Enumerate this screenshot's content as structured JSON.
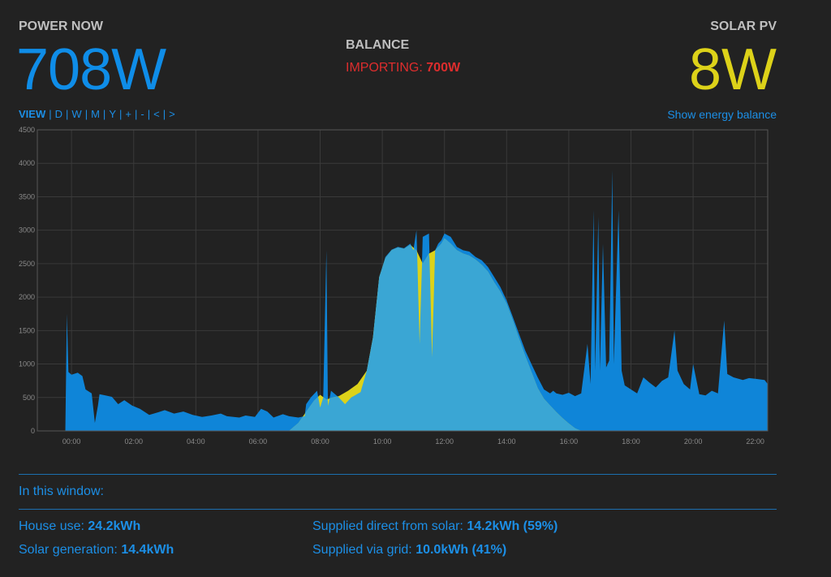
{
  "power_now": {
    "label": "POWER NOW",
    "value": "708W",
    "color": "#0f8de8"
  },
  "balance": {
    "label": "BALANCE",
    "status_prefix": "IMPORTING: ",
    "status_value": "700W",
    "color": "#dd2d2d"
  },
  "solar_pv": {
    "label": "SOLAR PV",
    "value": "8W",
    "color": "#ddd219"
  },
  "view_bar": {
    "items": [
      "VIEW",
      "D",
      "W",
      "M",
      "Y",
      "+",
      "-",
      "<",
      ">"
    ],
    "separator": "|"
  },
  "show_energy_balance": "Show energy balance",
  "summary": {
    "window_label": "In this window:",
    "house_use_label": "House use: ",
    "house_use_value": "24.2kWh",
    "solar_gen_label": "Solar generation: ",
    "solar_gen_value": "14.4kWh",
    "direct_solar_label": "Supplied direct from solar: ",
    "direct_solar_value": "14.2kWh (59%)",
    "via_grid_label": "Supplied via grid: ",
    "via_grid_value": "10.0kWh (41%)"
  },
  "chart_data": {
    "type": "area",
    "y_ticks": [
      0,
      500,
      1000,
      1500,
      2000,
      2500,
      3000,
      3500,
      4000,
      4500
    ],
    "x_ticks": [
      "00:00",
      "02:00",
      "04:00",
      "06:00",
      "08:00",
      "10:00",
      "12:00",
      "14:00",
      "16:00",
      "18:00",
      "20:00",
      "22:00"
    ],
    "ylim": [
      0,
      4500
    ],
    "xlim_hours": [
      -1.1,
      22.4
    ],
    "grid": true,
    "colors": {
      "use": "#0f85d8",
      "solar": "#ddd219",
      "direct": "#3aa6d4"
    },
    "series": [
      {
        "name": "use",
        "points": [
          [
            -0.2,
            0
          ],
          [
            -0.15,
            1750
          ],
          [
            -0.1,
            880
          ],
          [
            0,
            840
          ],
          [
            0.2,
            870
          ],
          [
            0.35,
            820
          ],
          [
            0.45,
            620
          ],
          [
            0.65,
            560
          ],
          [
            0.75,
            120
          ],
          [
            0.85,
            380
          ],
          [
            0.9,
            550
          ],
          [
            1.3,
            510
          ],
          [
            1.5,
            400
          ],
          [
            1.7,
            460
          ],
          [
            1.95,
            380
          ],
          [
            2.2,
            330
          ],
          [
            2.5,
            240
          ],
          [
            2.8,
            280
          ],
          [
            3.0,
            310
          ],
          [
            3.3,
            260
          ],
          [
            3.6,
            290
          ],
          [
            3.9,
            240
          ],
          [
            4.2,
            210
          ],
          [
            4.5,
            230
          ],
          [
            4.8,
            260
          ],
          [
            5.0,
            220
          ],
          [
            5.4,
            200
          ],
          [
            5.6,
            230
          ],
          [
            5.9,
            210
          ],
          [
            6.1,
            330
          ],
          [
            6.3,
            290
          ],
          [
            6.5,
            200
          ],
          [
            6.8,
            250
          ],
          [
            7.0,
            220
          ],
          [
            7.3,
            200
          ],
          [
            7.5,
            220
          ],
          [
            7.55,
            400
          ],
          [
            7.7,
            500
          ],
          [
            7.9,
            600
          ],
          [
            8.0,
            350
          ],
          [
            8.1,
            500
          ],
          [
            8.2,
            2700
          ],
          [
            8.25,
            350
          ],
          [
            8.35,
            600
          ],
          [
            8.6,
            500
          ],
          [
            8.8,
            400
          ],
          [
            9.0,
            500
          ],
          [
            9.3,
            580
          ],
          [
            9.5,
            900
          ],
          [
            9.7,
            1400
          ],
          [
            9.9,
            2300
          ],
          [
            10.1,
            2600
          ],
          [
            10.3,
            2710
          ],
          [
            10.5,
            2750
          ],
          [
            10.7,
            2730
          ],
          [
            10.9,
            2800
          ],
          [
            11.0,
            2700
          ],
          [
            11.1,
            3000
          ],
          [
            11.2,
            1300
          ],
          [
            11.3,
            2900
          ],
          [
            11.5,
            2950
          ],
          [
            11.6,
            1100
          ],
          [
            11.7,
            2700
          ],
          [
            11.8,
            2800
          ],
          [
            11.9,
            2850
          ],
          [
            12.0,
            2950
          ],
          [
            12.2,
            2900
          ],
          [
            12.4,
            2750
          ],
          [
            12.6,
            2700
          ],
          [
            12.8,
            2680
          ],
          [
            13.0,
            2600
          ],
          [
            13.2,
            2550
          ],
          [
            13.4,
            2450
          ],
          [
            13.6,
            2300
          ],
          [
            13.8,
            2150
          ],
          [
            14.0,
            1950
          ],
          [
            14.2,
            1700
          ],
          [
            14.4,
            1450
          ],
          [
            14.6,
            1200
          ],
          [
            14.8,
            1000
          ],
          [
            15.0,
            800
          ],
          [
            15.2,
            620
          ],
          [
            15.4,
            560
          ],
          [
            15.5,
            600
          ],
          [
            15.6,
            560
          ],
          [
            15.8,
            540
          ],
          [
            16.0,
            570
          ],
          [
            16.2,
            520
          ],
          [
            16.4,
            560
          ],
          [
            16.6,
            1300
          ],
          [
            16.7,
            700
          ],
          [
            16.8,
            3300
          ],
          [
            16.85,
            900
          ],
          [
            16.95,
            3200
          ],
          [
            17.0,
            900
          ],
          [
            17.1,
            2800
          ],
          [
            17.2,
            950
          ],
          [
            17.3,
            1050
          ],
          [
            17.4,
            3900
          ],
          [
            17.45,
            1000
          ],
          [
            17.6,
            3300
          ],
          [
            17.7,
            900
          ],
          [
            17.8,
            680
          ],
          [
            18.0,
            620
          ],
          [
            18.2,
            560
          ],
          [
            18.4,
            800
          ],
          [
            18.6,
            720
          ],
          [
            18.8,
            650
          ],
          [
            19.0,
            750
          ],
          [
            19.2,
            800
          ],
          [
            19.4,
            1500
          ],
          [
            19.5,
            900
          ],
          [
            19.7,
            700
          ],
          [
            19.9,
            620
          ],
          [
            20.0,
            1000
          ],
          [
            20.2,
            550
          ],
          [
            20.4,
            530
          ],
          [
            20.6,
            600
          ],
          [
            20.8,
            560
          ],
          [
            21.0,
            1650
          ],
          [
            21.1,
            850
          ],
          [
            21.3,
            800
          ],
          [
            21.6,
            760
          ],
          [
            21.8,
            790
          ],
          [
            22.0,
            780
          ],
          [
            22.3,
            760
          ],
          [
            22.4,
            700
          ]
        ]
      },
      {
        "name": "solar",
        "points": [
          [
            7.0,
            0
          ],
          [
            7.3,
            120
          ],
          [
            7.6,
            320
          ],
          [
            7.8,
            450
          ],
          [
            8.0,
            540
          ],
          [
            8.2,
            470
          ],
          [
            8.4,
            500
          ],
          [
            8.6,
            520
          ],
          [
            8.9,
            600
          ],
          [
            9.2,
            700
          ],
          [
            9.5,
            900
          ],
          [
            9.7,
            1400
          ],
          [
            9.9,
            2300
          ],
          [
            10.1,
            2580
          ],
          [
            10.3,
            2700
          ],
          [
            10.5,
            2740
          ],
          [
            10.7,
            2720
          ],
          [
            10.9,
            2780
          ],
          [
            11.1,
            2700
          ],
          [
            11.3,
            2500
          ],
          [
            11.5,
            2650
          ],
          [
            11.7,
            2700
          ],
          [
            11.9,
            2800
          ],
          [
            12.0,
            2880
          ],
          [
            12.2,
            2800
          ],
          [
            12.4,
            2700
          ],
          [
            12.6,
            2650
          ],
          [
            12.8,
            2620
          ],
          [
            13.0,
            2560
          ],
          [
            13.2,
            2480
          ],
          [
            13.4,
            2380
          ],
          [
            13.6,
            2220
          ],
          [
            13.8,
            2080
          ],
          [
            14.0,
            1900
          ],
          [
            14.2,
            1650
          ],
          [
            14.4,
            1380
          ],
          [
            14.6,
            1120
          ],
          [
            14.8,
            880
          ],
          [
            15.0,
            640
          ],
          [
            15.2,
            480
          ],
          [
            15.4,
            380
          ],
          [
            15.6,
            280
          ],
          [
            15.8,
            190
          ],
          [
            16.0,
            110
          ],
          [
            16.2,
            40
          ],
          [
            16.4,
            0
          ]
        ]
      }
    ]
  }
}
